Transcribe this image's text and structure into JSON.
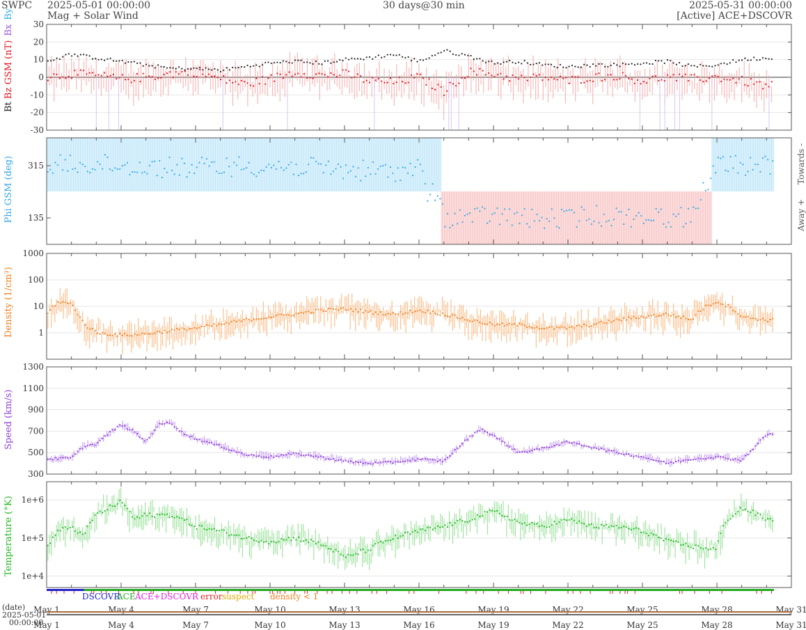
{
  "header": {
    "org": "SWPC",
    "start_time": "2025-05-01 00:00:00",
    "subtitle": "Mag + Solar Wind",
    "span": "30 days@30 min",
    "end_time": "2025-05-31 00:00:00",
    "source": "[Active] ACE+DSCOVR"
  },
  "colors": {
    "bt": "#222222",
    "bz": "#e3141d",
    "bz_fill": "#f7a6a6",
    "by": "#2bb0e6",
    "bx": "#9a5be0",
    "phi": "#33a8e8",
    "phi_towards": "#bfe6fa",
    "phi_away": "#f8c4c4",
    "density": "#f07f1f",
    "density_fill": "#f9c08e",
    "speed": "#9040d8",
    "speed_fill": "#c9a3ef",
    "temperature": "#23b823",
    "temperature_fill": "#9fe39f",
    "dscovr": "#2222cc",
    "ace": "#22aa22",
    "ace_dscovr": "#dd22dd",
    "error": "#dd2222",
    "suspect": "#ddaa00",
    "density_lt1": "#f07f1f"
  },
  "chart_data": [
    {
      "type": "line",
      "panel": "mag",
      "ylabel_parts": [
        "Bt",
        "Bz GSM (nT)",
        "Bx",
        "By"
      ],
      "ylim": [
        -30,
        30
      ],
      "yticks": [
        "30",
        "20",
        "10",
        "0",
        "-10",
        "-20",
        "-30"
      ],
      "series": [
        {
          "name": "Bt",
          "x": [
            0,
            1,
            2,
            3,
            4,
            5,
            6,
            7,
            8,
            9,
            10,
            11,
            12,
            13,
            14,
            15,
            16,
            17,
            18,
            19,
            20,
            21,
            22,
            23,
            24,
            25,
            26,
            27,
            28,
            29
          ],
          "values": [
            9,
            13,
            11,
            9,
            7,
            5,
            5,
            4,
            6,
            8,
            9,
            8,
            10,
            11,
            13,
            9,
            15,
            12,
            8,
            9,
            7,
            6,
            7,
            7,
            8,
            9,
            6,
            7,
            10,
            11
          ]
        },
        {
          "name": "Bz GSM",
          "x": [
            0,
            1,
            2,
            3,
            4,
            5,
            6,
            7,
            8,
            9,
            10,
            11,
            12,
            13,
            14,
            15,
            16,
            17,
            18,
            19,
            20,
            21,
            22,
            23,
            24,
            25,
            26,
            27,
            28,
            29
          ],
          "values": [
            0,
            2,
            1,
            -1,
            0,
            2,
            3,
            -1,
            -4,
            -1,
            3,
            1,
            2,
            -2,
            -3,
            0,
            -8,
            3,
            2,
            -1,
            0,
            -2,
            0,
            1,
            -2,
            0,
            -1,
            0,
            -2,
            -5
          ]
        }
      ]
    },
    {
      "type": "scatter",
      "panel": "phi",
      "ylabel": "Phi GSM (deg)",
      "yticks": [
        "315",
        "135"
      ],
      "right_labels": [
        "Towards -",
        "Away +"
      ],
      "sectors": [
        {
          "from": 0,
          "to": 15.9,
          "sector": "towards"
        },
        {
          "from": 15.9,
          "to": 16.5,
          "sector": "away"
        },
        {
          "from": 16.5,
          "to": 26.8,
          "sector": "away"
        },
        {
          "from": 26.8,
          "to": 29.3,
          "sector": "towards"
        }
      ],
      "series": [
        {
          "name": "Phi",
          "x": [
            0,
            2,
            4,
            6,
            8,
            10,
            12,
            14,
            15,
            16,
            18,
            20,
            22,
            24,
            26,
            27,
            28,
            29
          ],
          "values": [
            315,
            318,
            312,
            310,
            315,
            312,
            305,
            300,
            310,
            135,
            140,
            130,
            140,
            138,
            135,
            320,
            315,
            318
          ]
        }
      ]
    },
    {
      "type": "line",
      "panel": "density",
      "ylabel": "Density (1/cm³)",
      "scale": "log",
      "ylim": [
        0.1,
        1000
      ],
      "yticks": [
        "1000",
        "100",
        "10",
        "1"
      ],
      "series": [
        {
          "name": "Density",
          "x": [
            0,
            0.5,
            1,
            1.2,
            1.5,
            2,
            3,
            4,
            5,
            6,
            7,
            8,
            9,
            10,
            11,
            12,
            13,
            14,
            15,
            16,
            17,
            18,
            19,
            20,
            21,
            22,
            23,
            24,
            25,
            26,
            27,
            28,
            29
          ],
          "values": [
            4,
            15,
            12,
            6,
            2,
            1,
            0.8,
            0.9,
            1.2,
            1.5,
            2,
            3,
            4,
            5,
            7,
            8,
            6,
            5,
            7,
            5,
            3,
            2,
            2,
            1.5,
            1.5,
            2,
            3,
            4,
            5,
            3,
            15,
            4,
            3
          ]
        }
      ]
    },
    {
      "type": "line",
      "panel": "speed",
      "ylabel": "Speed (km/s)",
      "ylim": [
        300,
        1300
      ],
      "yticks": [
        "1300",
        "1100",
        "900",
        "700",
        "500",
        "300"
      ],
      "series": [
        {
          "name": "Speed",
          "x": [
            0,
            1,
            1.5,
            2,
            2.5,
            3,
            3.5,
            4,
            4.5,
            5,
            5.5,
            6,
            7,
            8,
            9,
            10,
            11,
            12,
            13,
            14,
            15,
            16,
            17,
            17.5,
            18,
            19,
            20,
            21,
            22,
            23,
            24,
            25,
            26,
            27,
            28,
            29
          ],
          "values": [
            440,
            450,
            560,
            580,
            680,
            760,
            700,
            600,
            760,
            780,
            680,
            630,
            560,
            480,
            460,
            490,
            460,
            420,
            400,
            410,
            440,
            420,
            640,
            720,
            660,
            500,
            540,
            600,
            550,
            500,
            460,
            400,
            440,
            460,
            430,
            670
          ]
        }
      ]
    },
    {
      "type": "line",
      "panel": "temperature",
      "ylabel": "Temperature (°K)",
      "scale": "log",
      "ylim": [
        5000,
        3000000
      ],
      "yticks": [
        "1e+6",
        "1e+5",
        "1e+4"
      ],
      "series": [
        {
          "name": "Temperature",
          "x": [
            0,
            0.5,
            1,
            1.5,
            2,
            2.5,
            3,
            3.5,
            4,
            5,
            6,
            7,
            8,
            9,
            10,
            11,
            12,
            13,
            14,
            15,
            16,
            17,
            18,
            19,
            20,
            21,
            22,
            23,
            24,
            25,
            26,
            27,
            28,
            29
          ],
          "values": [
            50000,
            150000,
            200000,
            100000,
            400000,
            600000,
            900000,
            300000,
            400000,
            400000,
            200000,
            150000,
            100000,
            80000,
            100000,
            70000,
            30000,
            50000,
            100000,
            150000,
            200000,
            300000,
            500000,
            250000,
            200000,
            300000,
            200000,
            200000,
            150000,
            80000,
            60000,
            50000,
            600000,
            300000
          ]
        }
      ]
    }
  ],
  "status_legend": [
    "DSCOVR",
    "ACE",
    "ACE+DSCOVR",
    "error",
    "suspect",
    "density < 1"
  ],
  "xaxis": {
    "ticks": [
      "May 1",
      "May 4",
      "May 7",
      "May 10",
      "May 13",
      "May 16",
      "May 19",
      "May 22",
      "May 25",
      "May 28",
      "May 31"
    ],
    "date_label": "(date)",
    "start_label_date": "2025-05-01",
    "start_label_time": "00:00:00"
  }
}
